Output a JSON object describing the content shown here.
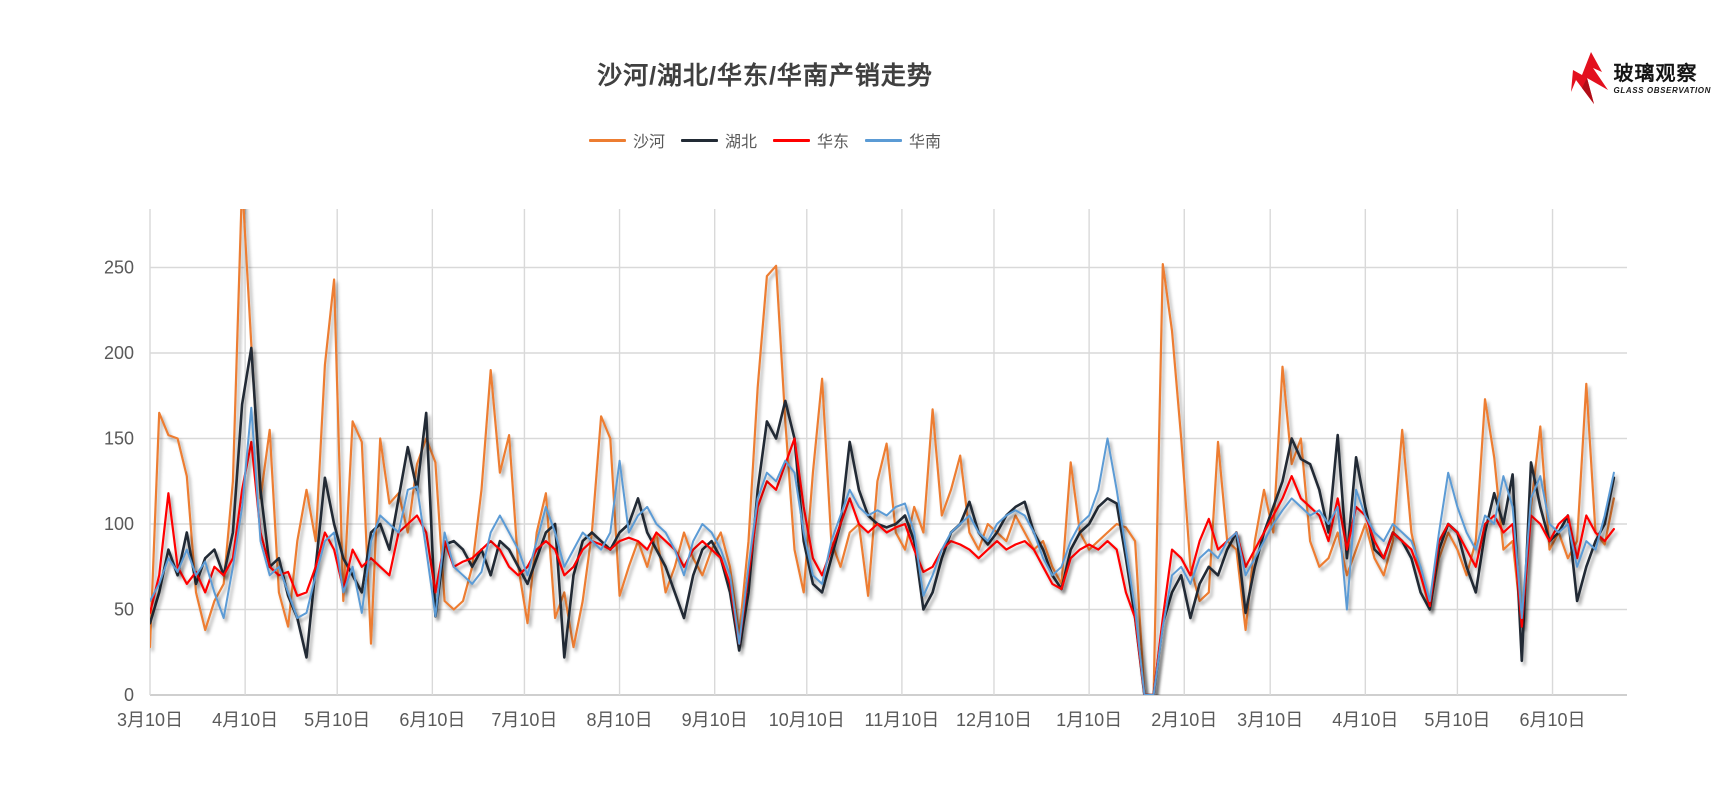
{
  "header": {
    "title": "沙河/湖北/华东/华南产销走势"
  },
  "logo": {
    "brand_cn": "玻璃观察",
    "brand_en": "GLASS OBSERVATION",
    "icon": "red-glass-shard",
    "color": "#E3101E"
  },
  "legend": [
    {
      "label": "沙河",
      "color": "#ED7D31"
    },
    {
      "label": "湖北",
      "color": "#222B35"
    },
    {
      "label": "华东",
      "color": "#FF0000"
    },
    {
      "label": "华南",
      "color": "#5B9BD5"
    }
  ],
  "chart_data": {
    "type": "line",
    "title": "沙河/湖北/华东/华南产销走势",
    "xlabel": "",
    "ylabel": "",
    "ylim": [
      0,
      284
    ],
    "yticks": [
      0,
      50,
      100,
      150,
      200,
      250
    ],
    "grid": true,
    "legend_position": "top",
    "x_tick_labels": [
      "3月10日",
      "4月10日",
      "5月10日",
      "6月10日",
      "7月10日",
      "8月10日",
      "9月10日",
      "10月10日",
      "11月10日",
      "12月10日",
      "1月10日",
      "2月10日",
      "3月10日",
      "4月10日",
      "5月10日",
      "6月10日"
    ],
    "tick_day_positions": [
      0,
      31,
      61,
      92,
      122,
      153,
      184,
      214,
      245,
      275,
      306,
      337,
      365,
      396,
      426,
      457
    ],
    "x_step_days": 3,
    "sampling": "values sampled every 3 days; day 0 = first 3月10日; series span ~478 days; first 沙河 peak clipped at plot top (~284+)",
    "colors": {
      "gridline": "#D9D9D9",
      "axis_line": "#BFBFBF",
      "tick_label": "#595959",
      "title": "#404040"
    },
    "series": [
      {
        "name": "沙河",
        "id": "shahe",
        "color": "#ED7D31",
        "stroke_width": 2.2,
        "values": [
          28,
          165,
          152,
          150,
          128,
          60,
          38,
          55,
          65,
          125,
          300,
          205,
          115,
          155,
          60,
          40,
          90,
          120,
          90,
          193,
          243,
          55,
          160,
          148,
          30,
          150,
          112,
          118,
          95,
          135,
          150,
          136,
          55,
          50,
          55,
          75,
          120,
          190,
          130,
          152,
          75,
          42,
          95,
          118,
          45,
          60,
          28,
          55,
          95,
          163,
          150,
          58,
          75,
          90,
          75,
          95,
          60,
          75,
          95,
          80,
          70,
          85,
          95,
          75,
          35,
          90,
          180,
          245,
          251,
          160,
          85,
          60,
          130,
          185,
          90,
          75,
          95,
          100,
          58,
          125,
          147,
          95,
          85,
          110,
          95,
          167,
          105,
          120,
          140,
          95,
          85,
          100,
          95,
          90,
          105,
          95,
          85,
          90,
          75,
          65,
          136,
          95,
          85,
          90,
          95,
          100,
          98,
          90,
          0,
          0,
          252,
          213,
          150,
          75,
          55,
          60,
          148,
          90,
          85,
          38,
          90,
          120,
          95,
          192,
          135,
          150,
          90,
          75,
          80,
          95,
          70,
          85,
          100,
          80,
          70,
          90,
          155,
          95,
          70,
          50,
          80,
          95,
          85,
          70,
          90,
          173,
          139,
          85,
          90,
          40,
          110,
          157,
          85,
          95,
          80,
          90,
          182,
          95,
          88,
          115
        ]
      },
      {
        "name": "湖北",
        "id": "hubei",
        "color": "#222B35",
        "stroke_width": 2.6,
        "values": [
          42,
          60,
          85,
          70,
          95,
          65,
          80,
          85,
          70,
          95,
          170,
          203,
          120,
          75,
          80,
          58,
          45,
          22,
          75,
          127,
          100,
          80,
          70,
          60,
          95,
          100,
          85,
          115,
          145,
          120,
          165,
          46,
          88,
          90,
          85,
          75,
          85,
          70,
          90,
          85,
          75,
          65,
          80,
          95,
          100,
          22,
          70,
          90,
          95,
          90,
          85,
          95,
          100,
          115,
          95,
          85,
          75,
          60,
          45,
          70,
          85,
          90,
          80,
          60,
          26,
          60,
          120,
          160,
          150,
          172,
          150,
          90,
          65,
          60,
          80,
          100,
          148,
          120,
          105,
          100,
          98,
          100,
          105,
          90,
          50,
          60,
          80,
          95,
          100,
          113,
          95,
          88,
          95,
          105,
          110,
          113,
          95,
          85,
          70,
          62,
          85,
          95,
          100,
          110,
          115,
          112,
          80,
          45,
          0,
          0,
          42,
          60,
          70,
          45,
          65,
          75,
          70,
          85,
          95,
          48,
          75,
          95,
          110,
          125,
          150,
          138,
          135,
          120,
          95,
          152,
          80,
          139,
          110,
          85,
          80,
          95,
          90,
          80,
          60,
          50,
          85,
          100,
          95,
          75,
          60,
          95,
          118,
          100,
          129,
          20,
          136,
          110,
          90,
          95,
          105,
          55,
          75,
          90,
          100,
          127
        ]
      },
      {
        "name": "华东",
        "id": "huadong",
        "color": "#FF0000",
        "stroke_width": 2.2,
        "values": [
          48,
          70,
          118,
          75,
          65,
          72,
          60,
          75,
          70,
          80,
          120,
          148,
          95,
          75,
          70,
          72,
          58,
          60,
          75,
          95,
          85,
          62,
          85,
          75,
          80,
          75,
          70,
          95,
          100,
          105,
          95,
          60,
          90,
          75,
          78,
          80,
          85,
          90,
          85,
          75,
          70,
          75,
          85,
          90,
          85,
          70,
          75,
          85,
          90,
          88,
          85,
          90,
          92,
          90,
          85,
          95,
          90,
          85,
          75,
          85,
          90,
          85,
          80,
          65,
          30,
          70,
          110,
          125,
          120,
          135,
          150,
          110,
          80,
          70,
          85,
          100,
          115,
          100,
          95,
          100,
          95,
          98,
          100,
          85,
          72,
          75,
          85,
          90,
          88,
          85,
          80,
          85,
          90,
          85,
          88,
          90,
          85,
          75,
          65,
          62,
          80,
          85,
          88,
          85,
          90,
          85,
          60,
          45,
          0,
          0,
          45,
          85,
          80,
          70,
          90,
          103,
          85,
          90,
          95,
          75,
          85,
          95,
          105,
          115,
          128,
          115,
          110,
          105,
          90,
          115,
          85,
          110,
          105,
          90,
          80,
          95,
          90,
          85,
          70,
          52,
          90,
          100,
          95,
          85,
          75,
          100,
          105,
          95,
          100,
          40,
          105,
          100,
          90,
          100,
          105,
          80,
          105,
          95,
          90,
          97
        ]
      },
      {
        "name": "华南",
        "id": "huanan",
        "color": "#5B9BD5",
        "stroke_width": 2.0,
        "values": [
          55,
          65,
          80,
          72,
          85,
          70,
          78,
          60,
          45,
          75,
          110,
          168,
          90,
          70,
          75,
          60,
          45,
          48,
          70,
          90,
          95,
          60,
          75,
          48,
          90,
          105,
          100,
          95,
          120,
          122,
          85,
          46,
          95,
          75,
          70,
          65,
          72,
          95,
          105,
          95,
          85,
          70,
          90,
          110,
          95,
          75,
          85,
          95,
          90,
          85,
          95,
          137,
          95,
          105,
          110,
          100,
          95,
          85,
          70,
          90,
          100,
          95,
          85,
          70,
          30,
          75,
          115,
          130,
          125,
          137,
          130,
          95,
          70,
          65,
          90,
          105,
          120,
          110,
          105,
          108,
          105,
          110,
          112,
          95,
          58,
          70,
          85,
          95,
          100,
          105,
          95,
          90,
          100,
          105,
          108,
          105,
          95,
          80,
          70,
          75,
          90,
          100,
          105,
          120,
          150,
          120,
          85,
          50,
          0,
          0,
          40,
          70,
          75,
          65,
          80,
          85,
          80,
          90,
          95,
          70,
          80,
          90,
          100,
          108,
          115,
          110,
          105,
          108,
          100,
          110,
          50,
          120,
          105,
          95,
          90,
          100,
          95,
          90,
          75,
          55,
          95,
          130,
          110,
          95,
          85,
          105,
          100,
          128,
          110,
          45,
          115,
          128,
          100,
          95,
          100,
          75,
          90,
          85,
          105,
          130
        ]
      }
    ]
  }
}
